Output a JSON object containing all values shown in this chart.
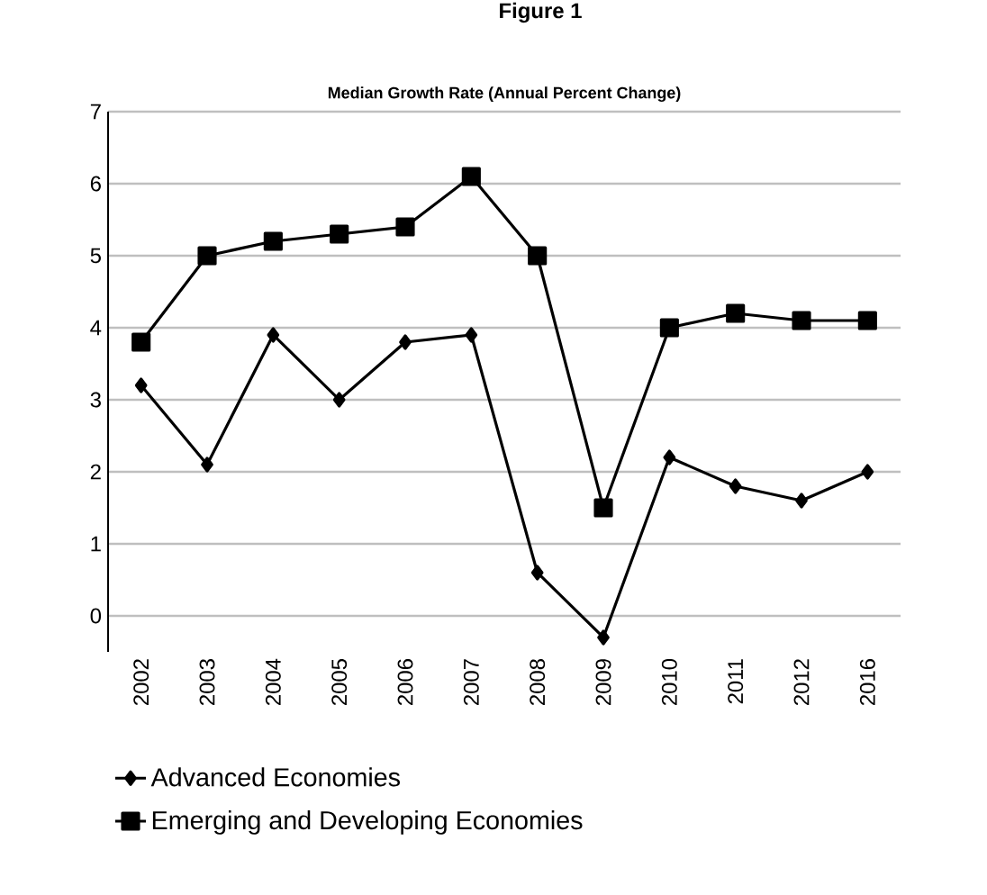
{
  "chart_data": {
    "type": "line",
    "title": "Median Growth Rate (Annual Percent Change)",
    "annotations": [
      "Figure 1"
    ],
    "categories": [
      "2002",
      "2003",
      "2004",
      "2005",
      "2006",
      "2007",
      "2008",
      "2009",
      "2010",
      "2011",
      "2012",
      "2016"
    ],
    "series": [
      {
        "name": "Advanced Economies",
        "color": "#000000",
        "marker": "diamond",
        "values": [
          3.2,
          2.1,
          3.9,
          3.0,
          3.8,
          3.9,
          0.6,
          -0.3,
          2.2,
          1.8,
          1.6,
          2.0
        ]
      },
      {
        "name": "Emerging and Developing Economies",
        "color": "#000000",
        "marker": "square",
        "values": [
          3.8,
          5.0,
          5.2,
          5.3,
          5.4,
          6.1,
          5.0,
          1.5,
          4.0,
          4.2,
          4.1,
          4.1
        ]
      }
    ],
    "ylim": [
      -0.5,
      7
    ],
    "yticks": [
      0,
      1,
      2,
      3,
      4,
      5,
      6,
      7
    ],
    "grid": "y",
    "legend": "bottom",
    "line_style": "solid"
  }
}
